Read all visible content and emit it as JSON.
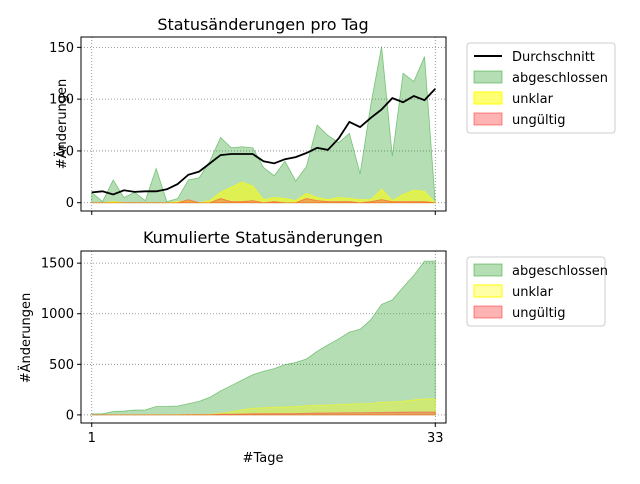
{
  "chart_data": [
    {
      "type": "area",
      "title": "Statusänderungen pro Tag",
      "xlabel": "",
      "ylabel": "#Änderungen",
      "x": [
        1,
        2,
        3,
        4,
        5,
        6,
        7,
        8,
        9,
        10,
        11,
        12,
        13,
        14,
        15,
        16,
        17,
        18,
        19,
        20,
        21,
        22,
        23,
        24,
        25,
        26,
        27,
        28,
        29,
        30,
        31,
        32,
        33
      ],
      "xlim": [
        0,
        34
      ],
      "ylim": [
        -8,
        160
      ],
      "yticks": [
        "0",
        "50",
        "100",
        "150"
      ],
      "grid": true,
      "legend_position": "outside-right-top",
      "series": [
        {
          "name": "abgeschlossen",
          "kind": "area",
          "color": "#2ca02c",
          "opacity": 0.35,
          "values": [
            10,
            1,
            22,
            5,
            10,
            2,
            33,
            1,
            4,
            22,
            24,
            40,
            63,
            53,
            54,
            53,
            34,
            26,
            40,
            21,
            35,
            75,
            65,
            58,
            67,
            28,
            95,
            151,
            45,
            125,
            117,
            141,
            0
          ]
        },
        {
          "name": "unklar",
          "kind": "area",
          "color": "#ffff00",
          "opacity": 0.55,
          "values": [
            0,
            0,
            1,
            0,
            0,
            0,
            0,
            0,
            1,
            2,
            0,
            2,
            10,
            15,
            20,
            16,
            3,
            5,
            4,
            2,
            9,
            5,
            3,
            5,
            4,
            3,
            3,
            13,
            2,
            8,
            12,
            11,
            0
          ]
        },
        {
          "name": "ungültig",
          "kind": "area",
          "color": "#ff4040",
          "opacity": 0.4,
          "values": [
            0,
            0,
            0,
            0,
            0,
            0,
            0,
            0,
            0,
            3,
            0,
            0,
            4,
            1,
            1,
            2,
            0,
            1,
            0,
            0,
            4,
            2,
            1,
            1,
            1,
            0,
            1,
            3,
            1,
            1,
            1,
            1,
            0
          ]
        },
        {
          "name": "Durchschnitt",
          "kind": "line",
          "color": "#000000",
          "values": [
            10,
            11,
            8,
            12,
            10.5,
            11,
            11,
            13,
            18,
            27,
            30,
            38,
            46,
            47,
            47,
            47,
            40,
            38,
            42,
            44,
            48,
            53,
            51,
            62,
            78,
            73,
            82,
            90,
            101,
            97,
            103,
            99,
            110
          ]
        }
      ]
    },
    {
      "type": "area",
      "title": "Kumulierte Statusänderungen",
      "xlabel": "#Tage",
      "ylabel": "#Änderungen",
      "x": [
        1,
        2,
        3,
        4,
        5,
        6,
        7,
        8,
        9,
        10,
        11,
        12,
        13,
        14,
        15,
        16,
        17,
        18,
        19,
        20,
        21,
        22,
        23,
        24,
        25,
        26,
        27,
        28,
        29,
        30,
        31,
        32,
        33
      ],
      "xlim": [
        0,
        34
      ],
      "ylim": [
        -80,
        1620
      ],
      "xticks": [
        "1",
        "33"
      ],
      "yticks": [
        "0",
        "500",
        "1000",
        "1500"
      ],
      "grid": true,
      "legend_position": "outside-right-top",
      "series": [
        {
          "name": "abgeschlossen",
          "kind": "area",
          "color": "#2ca02c",
          "opacity": 0.35,
          "values": [
            10,
            11,
            33,
            38,
            48,
            50,
            83,
            84,
            88,
            110,
            134,
            174,
            237,
            290,
            344,
            397,
            431,
            457,
            497,
            518,
            553,
            628,
            693,
            751,
            818,
            846,
            941,
            1092,
            1137,
            1262,
            1379,
            1520,
            1520
          ]
        },
        {
          "name": "unklar",
          "kind": "area",
          "color": "#ffff00",
          "opacity": 0.35,
          "values": [
            0,
            0,
            1,
            1,
            1,
            1,
            1,
            1,
            2,
            4,
            4,
            6,
            16,
            31,
            51,
            67,
            70,
            75,
            79,
            81,
            90,
            95,
            98,
            103,
            107,
            110,
            113,
            126,
            128,
            136,
            148,
            159,
            159
          ]
        },
        {
          "name": "ungültig",
          "kind": "area",
          "color": "#ff4040",
          "opacity": 0.4,
          "values": [
            0,
            0,
            0,
            0,
            0,
            0,
            0,
            0,
            0,
            3,
            3,
            3,
            7,
            8,
            9,
            11,
            11,
            12,
            12,
            12,
            16,
            18,
            19,
            20,
            21,
            21,
            22,
            25,
            26,
            27,
            28,
            29,
            29
          ]
        }
      ]
    }
  ]
}
